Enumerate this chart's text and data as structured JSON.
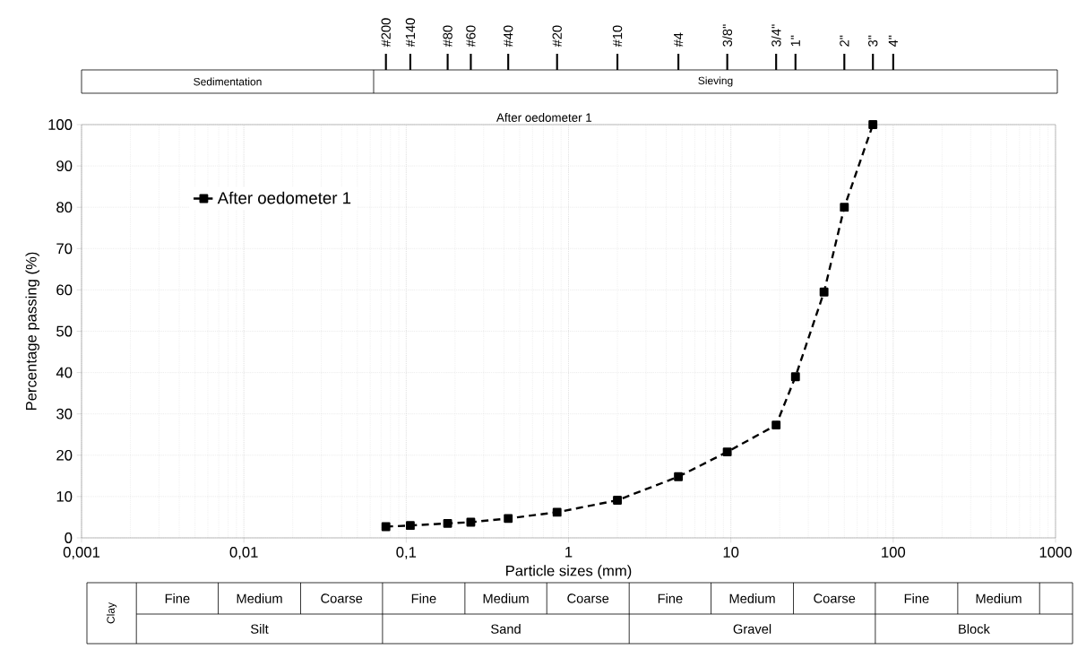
{
  "chart_data": {
    "type": "line",
    "title": "After oedometer 1",
    "xlabel": "Particle sizes (mm)",
    "ylabel": "Percentage passing (%)",
    "series": [
      {
        "name": "After oedometer 1",
        "color": "#000000",
        "x": [
          0.075,
          0.106,
          0.18,
          0.25,
          0.425,
          0.85,
          2,
          4.75,
          9.5,
          19,
          25,
          37.5,
          50,
          75
        ],
        "values": [
          2.7,
          3.0,
          3.5,
          3.8,
          4.7,
          6.2,
          9.1,
          14.8,
          20.8,
          27.3,
          39,
          59.5,
          80,
          100
        ]
      }
    ],
    "log": "x",
    "xlim": [
      0.001,
      1000
    ],
    "ylim": [
      0,
      100
    ],
    "xticks": [
      {
        "value": 0.001,
        "label": "0,001"
      },
      {
        "value": 0.01,
        "label": "0,01"
      },
      {
        "value": 0.1,
        "label": "0,1"
      },
      1,
      10,
      100,
      1000
    ],
    "yticks": [
      0,
      10,
      20,
      30,
      40,
      50,
      60,
      70,
      80,
      90,
      100
    ],
    "grid": true,
    "legend": "top left",
    "marker": "square",
    "line_style": "dashed",
    "annotations": [
      "Sedimentation",
      "Sieving",
      "Clay",
      "Fine",
      "Medium",
      "Coarse",
      "Fine",
      "Medium",
      "Coarse",
      "Fine",
      "Medium",
      "Coarse",
      "Fine",
      "Medium",
      "Silt",
      "Sand",
      "Gravel",
      "Block",
      {
        "text": "#200",
        "x": 0.075
      },
      {
        "text": "#140",
        "x": 0.106
      },
      {
        "text": "#80",
        "x": 0.18
      },
      {
        "text": "#60",
        "x": 0.25
      },
      {
        "text": "#40",
        "x": 0.425
      },
      {
        "text": "#20",
        "x": 0.85
      },
      {
        "text": "#10",
        "x": 2
      },
      {
        "text": "#4",
        "x": 4.75
      },
      {
        "text": "3/8\"",
        "x": 9.5
      },
      {
        "text": "3/4\"",
        "x": 19
      },
      {
        "text": "1\"",
        "x": 25
      },
      {
        "text": "2\"",
        "x": 50
      },
      {
        "text": "3\"",
        "x": 75
      },
      "4\""
    ]
  }
}
